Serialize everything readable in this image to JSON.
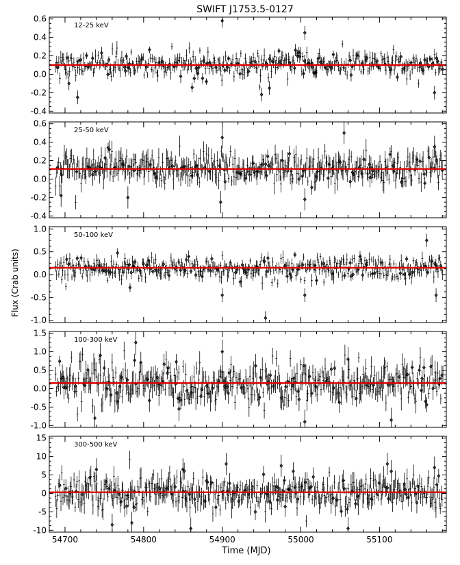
{
  "chart_data": {
    "type": "scatter",
    "title": "SWIFT J1753.5-0127",
    "xlabel": "Time (MJD)",
    "ylabel": "Flux (Crab units)",
    "xlim": [
      54680,
      55185
    ],
    "x_ticks": [
      54700,
      54800,
      54900,
      55000,
      55100
    ],
    "x_tick_labels": [
      "54700",
      "54800",
      "54900",
      "55000",
      "55100"
    ],
    "marker": "open diamond with vertical error bars",
    "line_color": "#dd0000",
    "point_color": "#000000",
    "panels": [
      {
        "band_label": "12-25 keV",
        "ylim": [
          -0.42,
          0.62
        ],
        "y_ticks": [
          -0.4,
          -0.2,
          0.0,
          0.2,
          0.4,
          0.6
        ],
        "y_tick_labels": [
          "-0.4",
          "-0.2",
          "0.0",
          "0.2",
          "0.4",
          "0.6"
        ],
        "mean_flux": 0.1,
        "typical_scatter": 0.07,
        "typical_error": 0.05,
        "notable_points": [
          {
            "x": 54705,
            "y": -0.1
          },
          {
            "x": 54716,
            "y": -0.25
          },
          {
            "x": 54900,
            "y": 0.58
          },
          {
            "x": 54950,
            "y": -0.22
          },
          {
            "x": 54960,
            "y": -0.15
          },
          {
            "x": 55005,
            "y": 0.45
          },
          {
            "x": 55170,
            "y": -0.2
          }
        ]
      },
      {
        "band_label": "25-50 keV",
        "ylim": [
          -0.42,
          0.62
        ],
        "y_ticks": [
          -0.4,
          -0.2,
          0.0,
          0.2,
          0.4,
          0.6
        ],
        "y_tick_labels": [
          "-0.4",
          "-0.2",
          "0.0",
          "0.2",
          "0.4",
          "0.6"
        ],
        "mean_flux": 0.11,
        "typical_scatter": 0.09,
        "typical_error": 0.08,
        "notable_points": [
          {
            "x": 54695,
            "y": -0.18
          },
          {
            "x": 54780,
            "y": -0.2
          },
          {
            "x": 54898,
            "y": -0.25
          },
          {
            "x": 54900,
            "y": 0.45
          },
          {
            "x": 55005,
            "y": -0.22
          },
          {
            "x": 55055,
            "y": 0.5
          },
          {
            "x": 55170,
            "y": 0.35
          }
        ]
      },
      {
        "band_label": "50-100 keV",
        "ylim": [
          -1.05,
          1.05
        ],
        "y_ticks": [
          -1.0,
          -0.5,
          0.0,
          0.5,
          1.0
        ],
        "y_tick_labels": [
          "-1.0",
          "-0.5",
          "0.0",
          "0.5",
          "1.0"
        ],
        "mean_flux": 0.15,
        "typical_scatter": 0.13,
        "typical_error": 0.1,
        "notable_points": [
          {
            "x": 54900,
            "y": -0.45
          },
          {
            "x": 54955,
            "y": -0.95
          },
          {
            "x": 55005,
            "y": -0.45
          },
          {
            "x": 55160,
            "y": 0.75
          },
          {
            "x": 55172,
            "y": -0.45
          }
        ]
      },
      {
        "band_label": "100-300 keV",
        "ylim": [
          -1.05,
          1.55
        ],
        "y_ticks": [
          -1.0,
          -0.5,
          0.0,
          0.5,
          1.0,
          1.5
        ],
        "y_tick_labels": [
          "-1.0",
          "-0.5",
          "0.0",
          "0.5",
          "1.0",
          "1.5"
        ],
        "mean_flux": 0.15,
        "typical_scatter": 0.28,
        "typical_error": 0.22,
        "notable_points": [
          {
            "x": 54738,
            "y": -0.8
          },
          {
            "x": 54745,
            "y": 0.9
          },
          {
            "x": 54790,
            "y": 1.25
          },
          {
            "x": 54845,
            "y": -0.55
          },
          {
            "x": 54900,
            "y": 1.0
          },
          {
            "x": 55005,
            "y": -0.9
          },
          {
            "x": 55060,
            "y": 0.8
          },
          {
            "x": 55115,
            "y": -0.85
          }
        ]
      },
      {
        "band_label": "300-500 keV",
        "ylim": [
          -10.5,
          15.5
        ],
        "y_ticks": [
          -10,
          -5,
          0,
          5,
          10,
          15
        ],
        "y_tick_labels": [
          "-10",
          "-5",
          "0",
          "5",
          "10",
          "15"
        ],
        "mean_flux": 0.3,
        "typical_scatter": 2.3,
        "typical_error": 2.0,
        "notable_points": [
          {
            "x": 54740,
            "y": 6.5
          },
          {
            "x": 54760,
            "y": -8.5
          },
          {
            "x": 54785,
            "y": -8.0
          },
          {
            "x": 54850,
            "y": 6.5
          },
          {
            "x": 54860,
            "y": -9.5
          },
          {
            "x": 54905,
            "y": 8.0
          },
          {
            "x": 54975,
            "y": 7.5
          },
          {
            "x": 55060,
            "y": -9.5
          },
          {
            "x": 55110,
            "y": 8.0
          },
          {
            "x": 55115,
            "y": 6.0
          },
          {
            "x": 55170,
            "y": 7.0
          }
        ]
      }
    ]
  }
}
